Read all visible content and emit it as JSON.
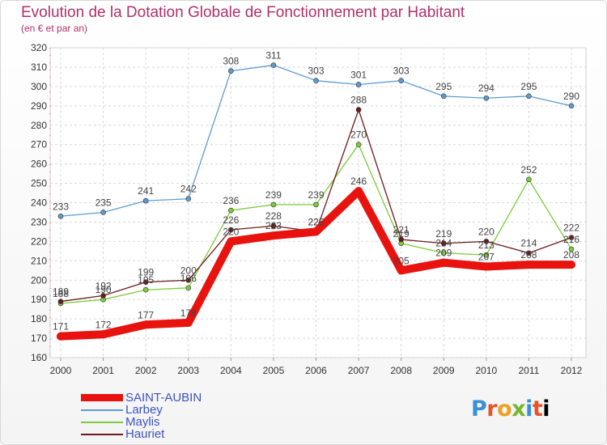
{
  "chart_data": {
    "type": "line",
    "title": "Evolution de la Dotation Globale de Fonctionnement par Habitant",
    "subtitle": "(en € et par an)",
    "xlabel": "",
    "ylabel": "",
    "categories": [
      "2000",
      "2001",
      "2002",
      "2003",
      "2004",
      "2005",
      "2006",
      "2007",
      "2008",
      "2009",
      "2010",
      "2011",
      "2012"
    ],
    "ylim": [
      160,
      320
    ],
    "yticks": [
      "160",
      "170",
      "180",
      "190",
      "200",
      "210",
      "220",
      "230",
      "240",
      "250",
      "260",
      "270",
      "280",
      "290",
      "300",
      "310",
      "320"
    ],
    "grid": true,
    "series": [
      {
        "name": "SAINT-AUBIN",
        "color": "#e8130f",
        "values": [
          171,
          172,
          177,
          178,
          220,
          223,
          225,
          246,
          205,
          209,
          207,
          208,
          208
        ]
      },
      {
        "name": "Larbey",
        "color": "#5e9bd0",
        "values": [
          233,
          235,
          241,
          242,
          308,
          311,
          303,
          301,
          303,
          295,
          294,
          295,
          290
        ]
      },
      {
        "name": "Maylis",
        "color": "#7ccb3c",
        "values": [
          188,
          190,
          195,
          196,
          236,
          239,
          239,
          270,
          219,
          214,
          213,
          252,
          216
        ]
      },
      {
        "name": "Hauriet",
        "color": "#6b1b1b",
        "values": [
          189,
          192,
          199,
          200,
          226,
          228,
          225,
          288,
          221,
          219,
          220,
          214,
          222
        ]
      }
    ]
  },
  "legend": {
    "items": [
      {
        "label": "SAINT-AUBIN",
        "color": "#e8130f"
      },
      {
        "label": "Larbey",
        "color": "#5e9bd0"
      },
      {
        "label": "Maylis",
        "color": "#7ccb3c"
      },
      {
        "label": "Hauriet",
        "color": "#6b1b1b"
      }
    ]
  },
  "logo": {
    "letters": [
      "P",
      "r",
      "o",
      "x",
      "i",
      "t",
      "i"
    ]
  }
}
